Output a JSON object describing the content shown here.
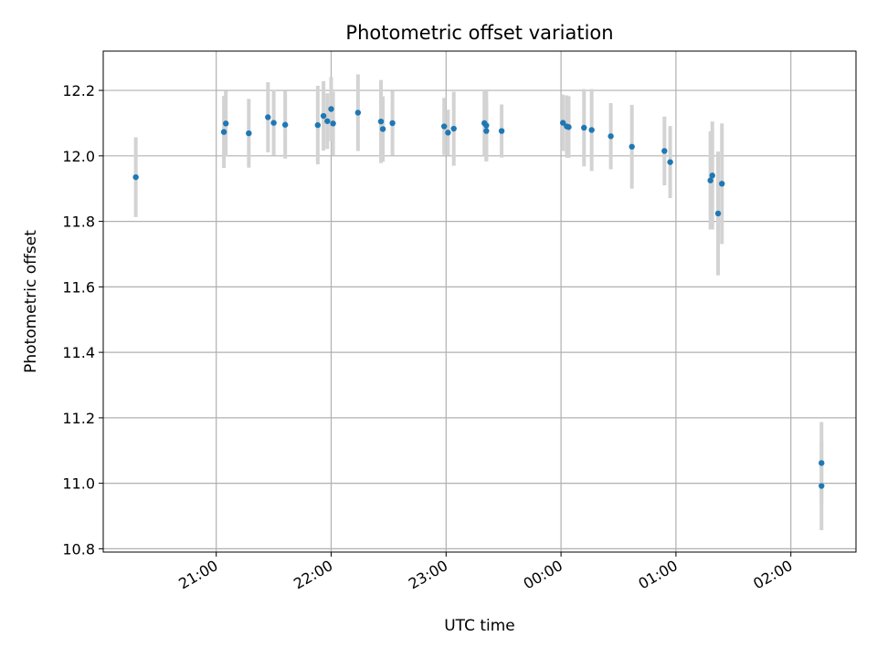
{
  "chart_data": {
    "type": "scatter",
    "title": "Photometric offset variation",
    "xlabel": "UTC time",
    "ylabel": "Photometric offset",
    "x_axis_kind": "time",
    "xlim": [
      "20:01",
      "02:34"
    ],
    "ylim": [
      10.79,
      12.32
    ],
    "grid": true,
    "legend": "none",
    "colors": {
      "points": "#1f77b4",
      "errorbars": "#d3d3d3",
      "grid": "#b0b0b0"
    },
    "x_ticks": [
      "21:00",
      "22:00",
      "23:00",
      "00:00",
      "01:00",
      "02:00"
    ],
    "y_ticks": [
      10.8,
      11.0,
      11.2,
      11.4,
      11.6,
      11.8,
      12.0,
      12.2
    ],
    "points": [
      {
        "x": "20:18",
        "y": 11.935,
        "err": 0.122
      },
      {
        "x": "21:04",
        "y": 12.073,
        "err": 0.11
      },
      {
        "x": "21:05",
        "y": 12.099,
        "err": 0.1
      },
      {
        "x": "21:17",
        "y": 12.069,
        "err": 0.105
      },
      {
        "x": "21:27",
        "y": 12.118,
        "err": 0.107
      },
      {
        "x": "21:30",
        "y": 12.101,
        "err": 0.1
      },
      {
        "x": "21:36",
        "y": 12.095,
        "err": 0.103
      },
      {
        "x": "21:53",
        "y": 12.094,
        "err": 0.12
      },
      {
        "x": "21:56",
        "y": 12.122,
        "err": 0.106
      },
      {
        "x": "21:58",
        "y": 12.106,
        "err": 0.085
      },
      {
        "x": "22:00",
        "y": 12.143,
        "err": 0.098
      },
      {
        "x": "22:01",
        "y": 12.099,
        "err": 0.097
      },
      {
        "x": "22:14",
        "y": 12.132,
        "err": 0.117
      },
      {
        "x": "22:26",
        "y": 12.105,
        "err": 0.127
      },
      {
        "x": "22:27",
        "y": 12.082,
        "err": 0.1
      },
      {
        "x": "22:32",
        "y": 12.1,
        "err": 0.098
      },
      {
        "x": "22:59",
        "y": 12.09,
        "err": 0.087
      },
      {
        "x": "23:01",
        "y": 12.071,
        "err": 0.07
      },
      {
        "x": "23:04",
        "y": 12.083,
        "err": 0.113
      },
      {
        "x": "23:20",
        "y": 12.1,
        "err": 0.1
      },
      {
        "x": "23:21",
        "y": 12.093,
        "err": 0.11
      },
      {
        "x": "23:21",
        "y": 12.076,
        "err": 0.092
      },
      {
        "x": "23:29",
        "y": 12.076,
        "err": 0.081
      },
      {
        "x": "00:01",
        "y": 12.101,
        "err": 0.086
      },
      {
        "x": "00:03",
        "y": 12.09,
        "err": 0.095
      },
      {
        "x": "00:04",
        "y": 12.088,
        "err": 0.094
      },
      {
        "x": "00:12",
        "y": 12.086,
        "err": 0.118
      },
      {
        "x": "00:16",
        "y": 12.079,
        "err": 0.125
      },
      {
        "x": "00:26",
        "y": 12.06,
        "err": 0.101
      },
      {
        "x": "00:37",
        "y": 12.028,
        "err": 0.128
      },
      {
        "x": "00:54",
        "y": 12.015,
        "err": 0.105
      },
      {
        "x": "00:57",
        "y": 11.981,
        "err": 0.11
      },
      {
        "x": "01:18",
        "y": 11.925,
        "err": 0.15
      },
      {
        "x": "01:19",
        "y": 11.94,
        "err": 0.165
      },
      {
        "x": "01:22",
        "y": 11.824,
        "err": 0.189
      },
      {
        "x": "01:24",
        "y": 11.915,
        "err": 0.184
      },
      {
        "x": "02:16",
        "y": 11.062,
        "err": 0.125
      },
      {
        "x": "02:16",
        "y": 10.992,
        "err": 0.135
      }
    ]
  }
}
